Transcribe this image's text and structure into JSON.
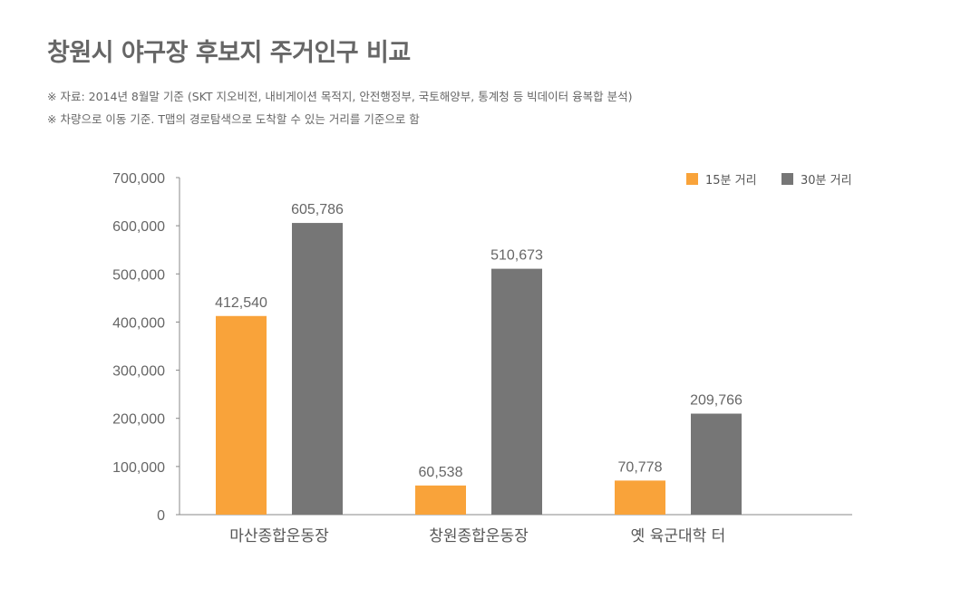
{
  "header": {
    "title": "창원시 야구장 후보지 주거인구 비교",
    "note1": "※ 자료: 2014년 8월말 기준 (SKT 지오비전, 내비게이션 목적지, 안전행정부, 국토해양부, 통계청 등 빅데이터 융복합 분석)",
    "note2": "※ 차량으로 이동 기준. T맵의 경로탐색으로 도착할 수 있는 거리를 기준으로 함"
  },
  "chart_data": {
    "type": "bar",
    "categories": [
      "마산종합운동장",
      "창원종합운동장",
      "옛 육군대학 터"
    ],
    "series": [
      {
        "name": "15분 거리",
        "values": [
          412540,
          60538,
          70778
        ],
        "labels": [
          "412,540",
          "60,538",
          "70,778"
        ],
        "color": "#f9a33a"
      },
      {
        "name": "30분 거리",
        "values": [
          605786,
          510673,
          209766
        ],
        "labels": [
          "605,786",
          "510,673",
          "209,766"
        ],
        "color": "#767676"
      }
    ],
    "ylim": [
      0,
      700000
    ],
    "yticks": [
      0,
      100000,
      200000,
      300000,
      400000,
      500000,
      600000,
      700000
    ],
    "ytick_labels": [
      "0",
      "100,000",
      "200,000",
      "300,000",
      "400,000",
      "500,000",
      "600,000",
      "700,000"
    ],
    "legend_position": "top-right",
    "grid": false,
    "xlabel": "",
    "ylabel": ""
  }
}
